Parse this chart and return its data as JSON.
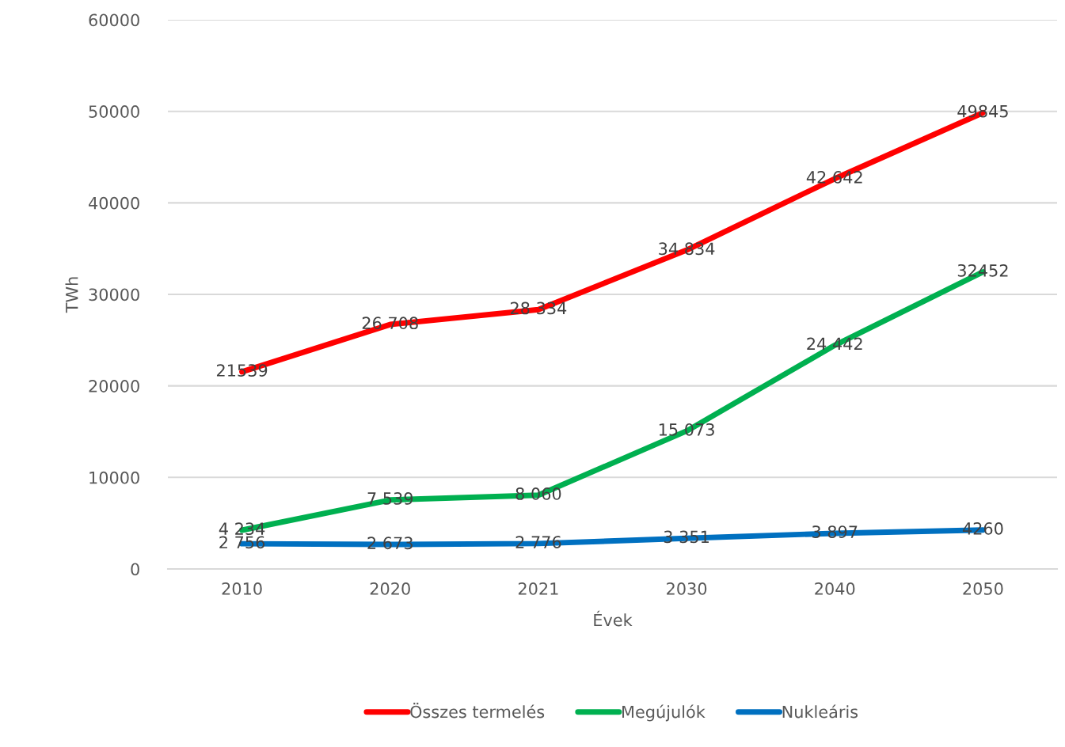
{
  "chart_data": {
    "type": "line",
    "xlabel": "Évek",
    "ylabel": "TWh",
    "categories": [
      "2010",
      "2020",
      "2021",
      "2030",
      "2040",
      "2050"
    ],
    "series": [
      {
        "name": "Összes termelés",
        "color": "#ff0000",
        "values": [
          21539,
          26708,
          28334,
          34834,
          42642,
          49845
        ],
        "value_labels": [
          "21539",
          "26 708",
          "28 334",
          "34 834",
          "42 642",
          "49845"
        ]
      },
      {
        "name": "Megújulók",
        "color": "#00b050",
        "values": [
          4234,
          7539,
          8060,
          15073,
          24442,
          32452
        ],
        "value_labels": [
          "4 234",
          "7 539",
          "8 060",
          "15 073",
          "24 442",
          "32452"
        ]
      },
      {
        "name": "Nukleáris",
        "color": "#0070c0",
        "values": [
          2756,
          2673,
          2776,
          3351,
          3897,
          4260
        ],
        "value_labels": [
          "2 756",
          "2 673",
          "2 776",
          "3 351",
          "3 897",
          "4260"
        ]
      }
    ],
    "ylim": [
      0,
      60000
    ],
    "yticks": [
      0,
      10000,
      20000,
      30000,
      40000,
      50000,
      60000
    ],
    "grid": "y",
    "legend": "bottom",
    "marker": "none",
    "line_style": "solid"
  }
}
